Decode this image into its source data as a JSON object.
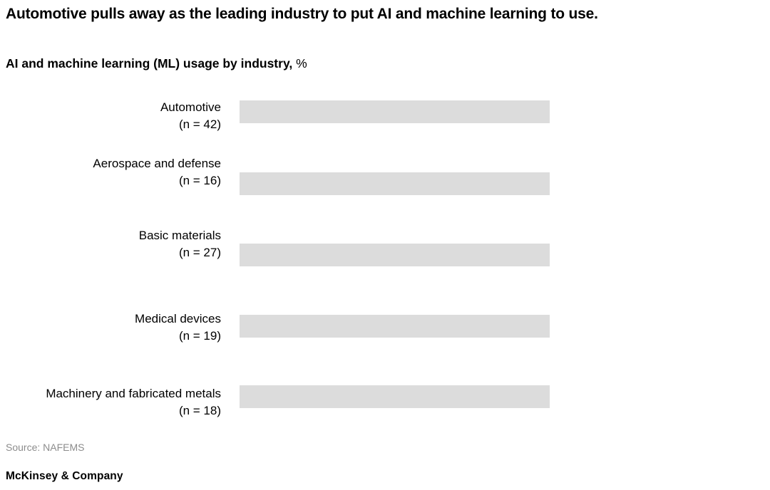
{
  "header": {
    "title": "Automotive pulls away as the leading industry to put AI and machine learning to use.",
    "subtitle": "AI and machine learning (ML) usage by industry,",
    "subtitle_unit": "%"
  },
  "chart": {
    "bar_color": "#dcdcdc",
    "rows": [
      {
        "label": "Automotive",
        "n": "(n = 42)"
      },
      {
        "label": "Aerospace and defense",
        "n": "(n = 16)"
      },
      {
        "label": "Basic materials",
        "n": "(n = 27)"
      },
      {
        "label": "Medical devices",
        "n": "(n = 19)"
      },
      {
        "label": "Machinery and fabricated metals",
        "n": "(n = 18)"
      }
    ]
  },
  "footer": {
    "source": "Source: NAFEMS",
    "brand": "McKinsey & Company"
  },
  "chart_data": {
    "type": "bar",
    "orientation": "horizontal",
    "title": "Automotive pulls away as the leading industry to put AI and machine learning to use.",
    "subtitle": "AI and machine learning (ML) usage by industry, %",
    "categories": [
      "Automotive",
      "Aerospace and defense",
      "Basic materials",
      "Medical devices",
      "Machinery and fabricated metals"
    ],
    "sample_sizes": [
      42,
      16,
      27,
      19,
      18
    ],
    "values_pct": [
      null,
      null,
      null,
      null,
      null
    ],
    "value_labels_shown": false,
    "bars_rendered_equal_width": true,
    "bar_color": "#dcdcdc",
    "axes_shown": false,
    "gridlines": false,
    "legend": "none",
    "source": "NAFEMS"
  }
}
